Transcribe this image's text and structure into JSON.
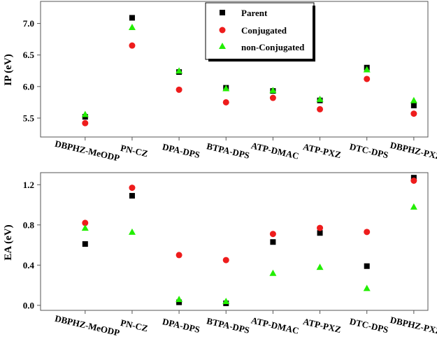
{
  "colors": {
    "parent": "#000000",
    "conjugated": "#ee1c1c",
    "non_conjugated": "#22ee00"
  },
  "chart_data": [
    {
      "type": "scatter",
      "title": "",
      "xlabel": "",
      "ylabel": "IP (eV)",
      "ylim": [
        5.2,
        7.35
      ],
      "yticks": [
        "5.5",
        "6.0",
        "6.5",
        "7.0"
      ],
      "ytick_values": [
        5.5,
        6.0,
        6.5,
        7.0
      ],
      "grid": false,
      "legend": "top-center",
      "categories": [
        "DBPHZ-MeODP",
        "PN-CZ",
        "DPA-DPS",
        "BTPA-DPS",
        "ATP-DMAC",
        "ATP-PXZ",
        "DTC-DPS",
        "DBPHZ-PXZ"
      ],
      "series": [
        {
          "name": "Parent",
          "marker": "square",
          "values": [
            5.52,
            7.09,
            6.23,
            5.98,
            5.93,
            5.78,
            6.3,
            5.7
          ]
        },
        {
          "name": "Conjugated",
          "marker": "circle",
          "values": [
            5.42,
            6.65,
            5.95,
            5.75,
            5.82,
            5.64,
            6.12,
            5.57
          ]
        },
        {
          "name": "non-Conjugated",
          "marker": "triangle",
          "values": [
            5.56,
            6.94,
            6.25,
            5.97,
            5.94,
            5.8,
            6.27,
            5.78
          ]
        }
      ]
    },
    {
      "type": "scatter",
      "title": "",
      "xlabel": "",
      "ylabel": "EA (eV)",
      "ylim": [
        -0.05,
        1.32
      ],
      "yticks": [
        "0.0",
        "0.4",
        "0.8",
        "1.2"
      ],
      "ytick_values": [
        0.0,
        0.4,
        0.8,
        1.2
      ],
      "grid": false,
      "legend": "none",
      "categories": [
        "DBPHZ-MeODP",
        "PN-CZ",
        "DPA-DPS",
        "BTPA-DPS",
        "ATP-DMAC",
        "ATP-PXZ",
        "DTC-DPS",
        "DBPHZ-PXZ"
      ],
      "series": [
        {
          "name": "Parent",
          "marker": "square",
          "values": [
            0.61,
            1.09,
            0.03,
            0.02,
            0.63,
            0.72,
            0.39,
            1.27
          ]
        },
        {
          "name": "Conjugated",
          "marker": "circle",
          "values": [
            0.82,
            1.17,
            0.5,
            0.45,
            0.71,
            0.77,
            0.73,
            1.24
          ]
        },
        {
          "name": "non-Conjugated",
          "marker": "triangle",
          "values": [
            0.77,
            0.73,
            0.06,
            0.04,
            0.32,
            0.38,
            0.17,
            0.98
          ]
        }
      ]
    }
  ]
}
